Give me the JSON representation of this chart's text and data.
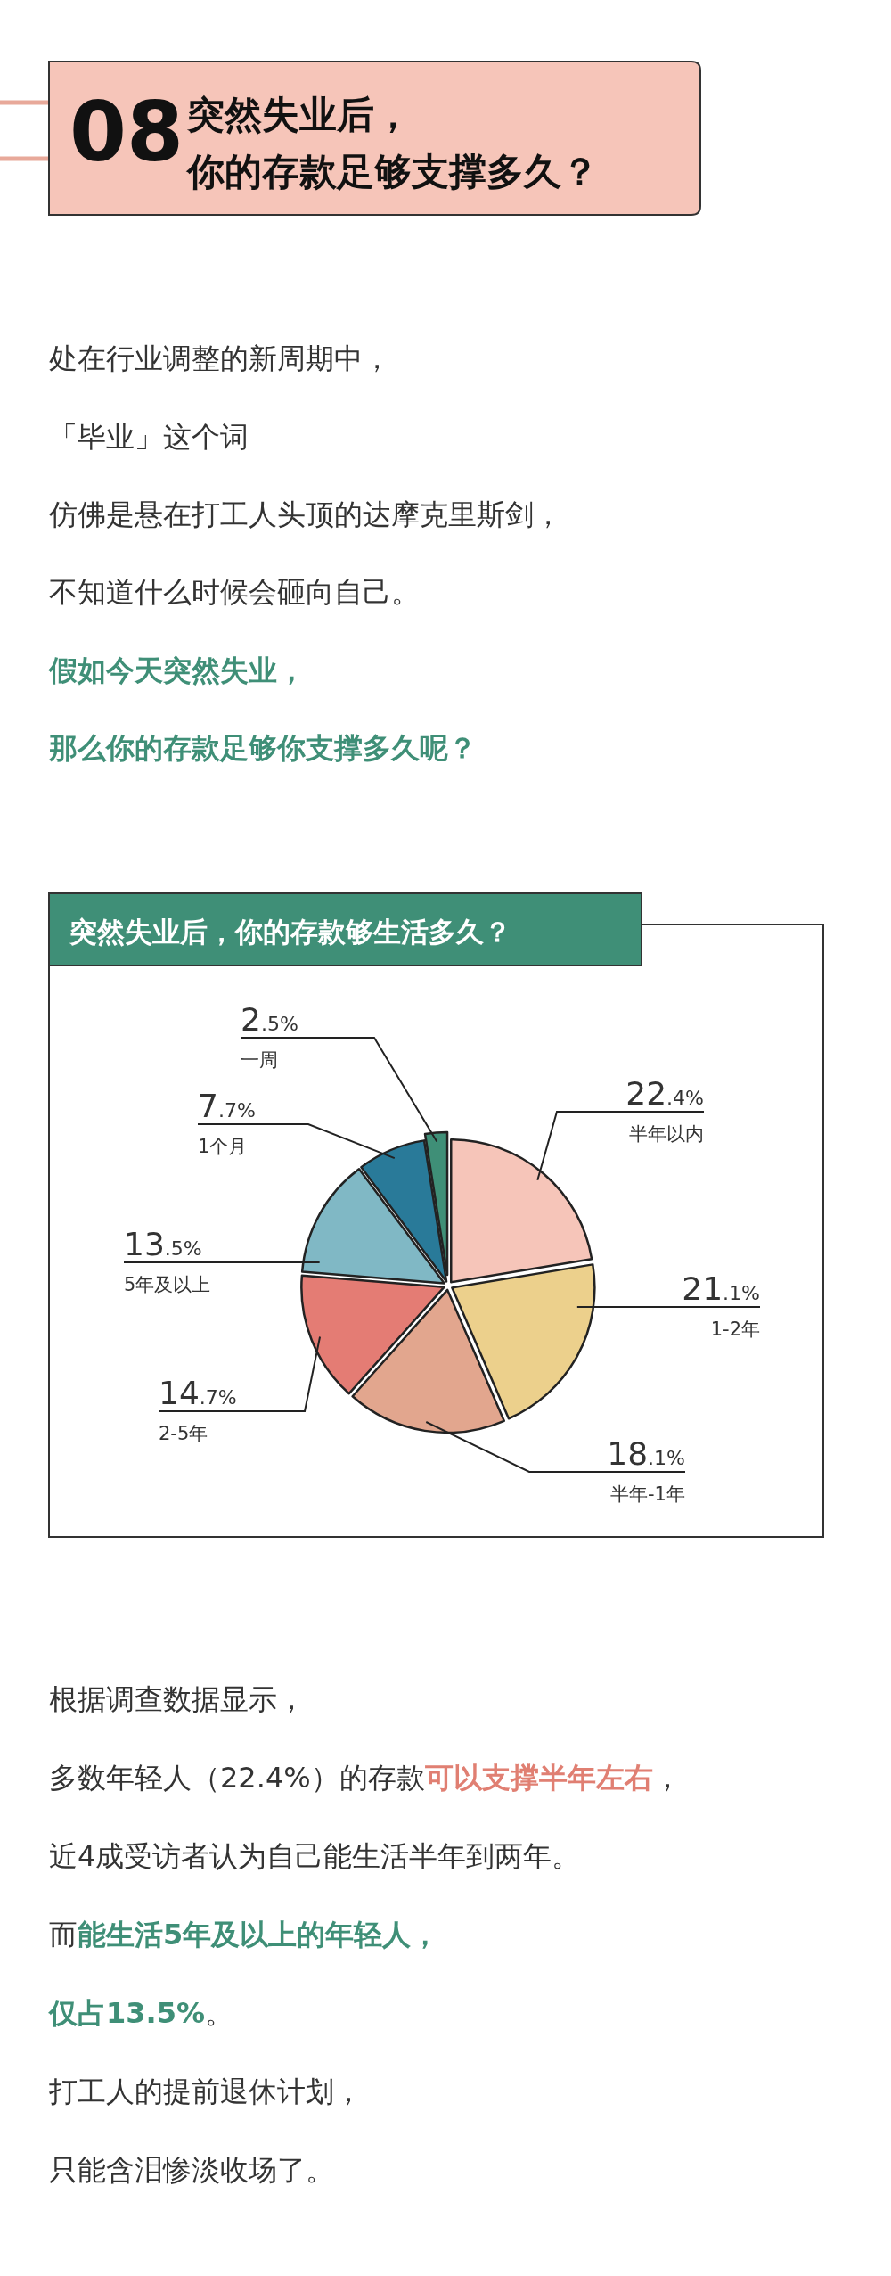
{
  "chart_data": {
    "type": "pie",
    "title": "突然失业后，你的存款够生活多久？",
    "categories": [
      "半年以内",
      "1-2年",
      "半年-1年",
      "2-5年",
      "5年及以上",
      "1个月",
      "一周"
    ],
    "values": [
      22.4,
      21.1,
      18.1,
      14.7,
      13.5,
      7.7,
      2.5
    ],
    "value_labels": [
      "22.4%",
      "21.1%",
      "18.1%",
      "14.7%",
      "13.5%",
      "7.7%",
      "2.5%"
    ],
    "colors": [
      "#f6c5b9",
      "#ecd08c",
      "#e2a68e",
      "#e47c74",
      "#80b8c5",
      "#297a99",
      "#3f8f77"
    ],
    "annotations": [
      "08",
      "突然失业后，",
      "你的存款足够支撑多久？",
      "处在行业调整的新周期中，",
      "「毕业」这个词",
      "仿佛是悬在打工人头顶的达摩克里斯剑，",
      "不知道什么时候会砸向自己。",
      "假如今天突然失业，",
      "那么你的存款足够你支撑多久呢？",
      "根据调查数据显示，",
      "多数年轻人（22.4%）的存款",
      "可以支撑半年左右",
      "，",
      "近4成受访者认为自己能生活半年到两年。",
      "而",
      "能生活5年及以上的年轻人，",
      "仅占13.5%",
      "。",
      "打工人的提前退休计划，",
      "只能含泪惨淡收场了。"
    ]
  }
}
